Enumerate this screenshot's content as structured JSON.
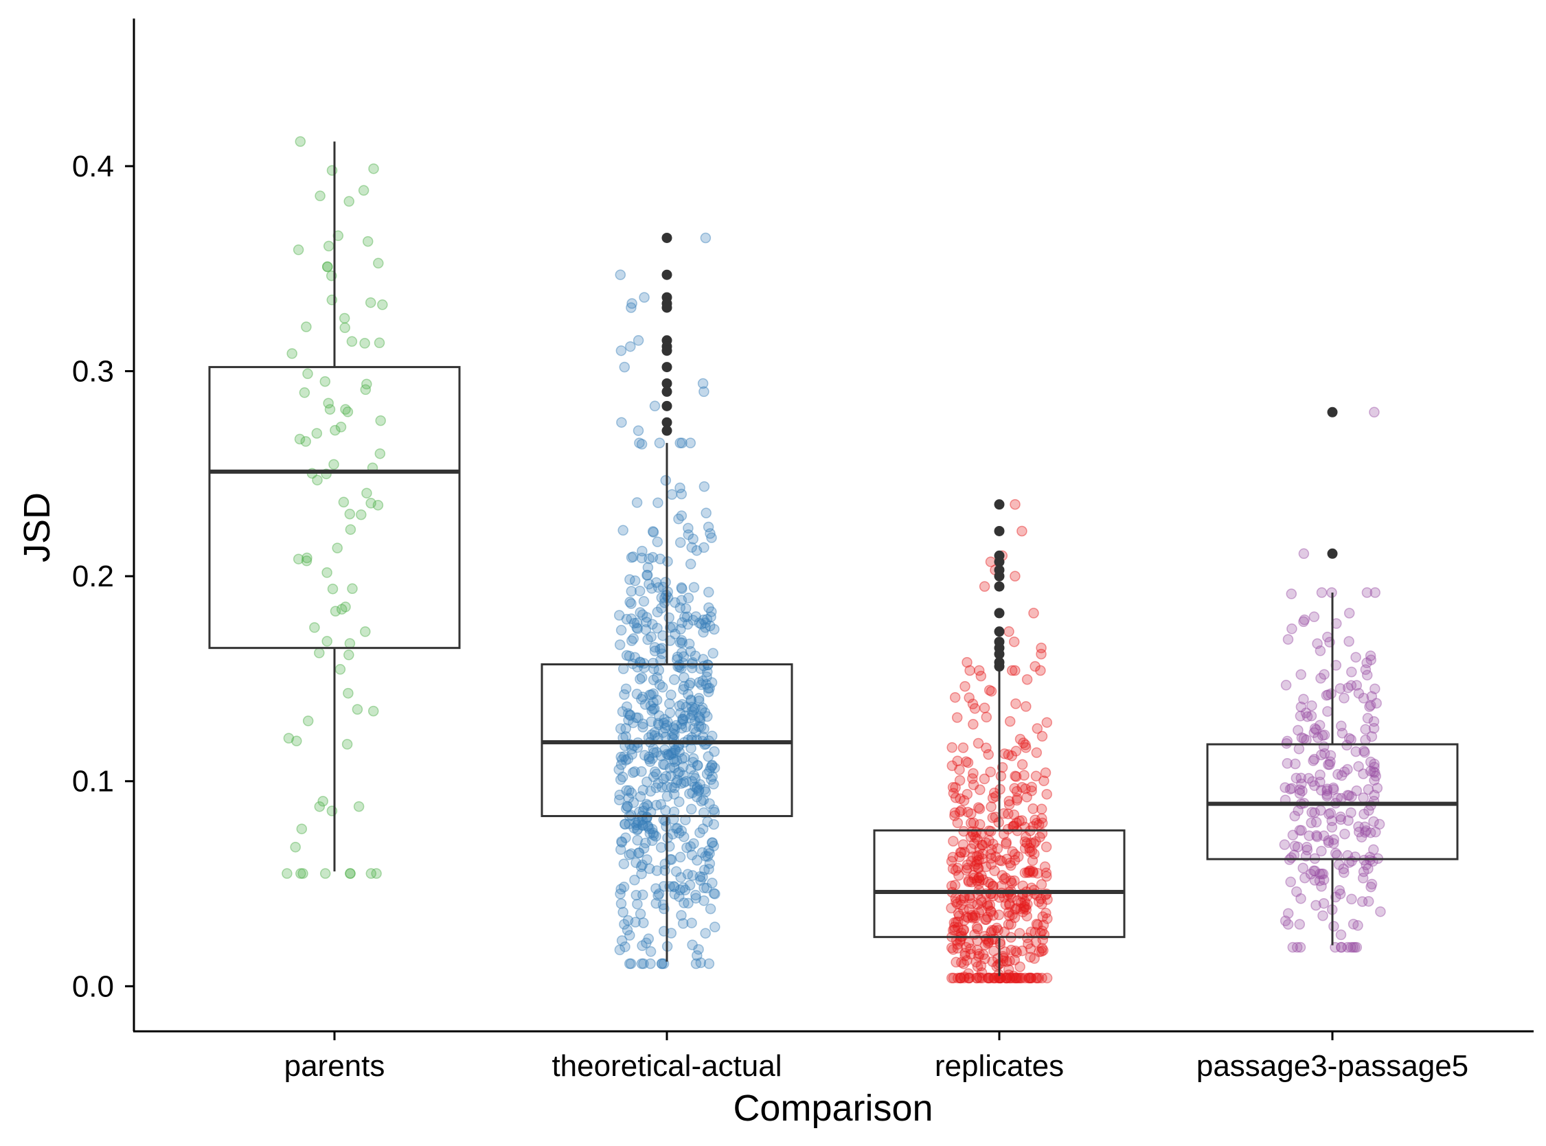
{
  "chart_data": {
    "type": "boxplot",
    "xlabel": "Comparison",
    "ylabel": "JSD",
    "ylim": [
      -0.022,
      0.472
    ],
    "yticks": [
      0.0,
      0.1,
      0.2,
      0.3,
      0.4
    ],
    "ytick_labels": [
      "0.0",
      "0.1",
      "0.2",
      "0.3",
      "0.4"
    ],
    "grid": false,
    "legend": "none",
    "categories": [
      "parents",
      "theoretical-actual",
      "replicates",
      "passage3-passage5"
    ],
    "boxes": [
      {
        "category": "parents",
        "color": "#4daf4a",
        "n_points": 90,
        "q1": 0.165,
        "median": 0.251,
        "q3": 0.302,
        "whisker_low": 0.056,
        "whisker_high": 0.412,
        "outliers": [],
        "range": [
          0.055,
          0.413
        ]
      },
      {
        "category": "theoretical-actual",
        "color": "#377eb8",
        "n_points": 600,
        "q1": 0.083,
        "median": 0.119,
        "q3": 0.157,
        "whisker_low": 0.012,
        "whisker_high": 0.265,
        "outliers": [
          0.365,
          0.347,
          0.336,
          0.333,
          0.331,
          0.315,
          0.312,
          0.31,
          0.302,
          0.294,
          0.29,
          0.283,
          0.275,
          0.271
        ],
        "range": [
          0.011,
          0.365
        ]
      },
      {
        "category": "replicates",
        "color": "#e41a1c",
        "n_points": 500,
        "q1": 0.024,
        "median": 0.046,
        "q3": 0.076,
        "whisker_low": 0.005,
        "whisker_high": 0.154,
        "outliers": [
          0.235,
          0.222,
          0.21,
          0.207,
          0.203,
          0.2,
          0.195,
          0.182,
          0.173,
          0.168,
          0.165,
          0.162,
          0.158,
          0.156
        ],
        "range": [
          0.004,
          0.235
        ]
      },
      {
        "category": "passage3-passage5",
        "color": "#984ea3",
        "n_points": 260,
        "q1": 0.062,
        "median": 0.089,
        "q3": 0.118,
        "whisker_low": 0.02,
        "whisker_high": 0.192,
        "outliers": [
          0.28,
          0.211
        ],
        "range": [
          0.019,
          0.28
        ]
      }
    ]
  }
}
